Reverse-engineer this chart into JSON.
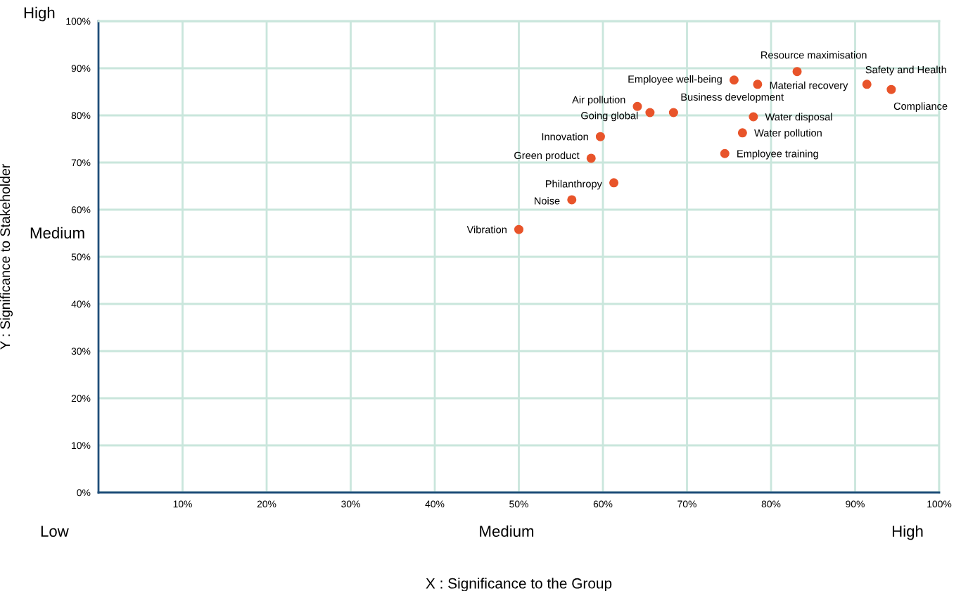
{
  "chart_data": {
    "type": "scatter",
    "xlabel": "X : Significance to the Group",
    "ylabel": "Y : Significance to Stakeholder",
    "x": [
      83.1,
      75.6,
      78.4,
      91.4,
      94.3,
      64.1,
      65.6,
      68.4,
      77.9,
      76.6,
      59.7,
      74.5,
      58.6,
      61.3,
      56.3,
      50.0
    ],
    "values": [
      89.3,
      87.5,
      86.6,
      86.6,
      85.5,
      81.9,
      80.6,
      80.6,
      79.7,
      76.3,
      75.5,
      71.9,
      70.9,
      65.7,
      62.1,
      55.8
    ],
    "value_labels": [
      "Resource maximisation",
      "Employee well-being",
      "Material recovery",
      "Safety and Health",
      "Compliance",
      "Air pollution",
      "Going global",
      "Business development",
      "Water disposal",
      "Water pollution",
      "Innovation",
      "Employee training",
      "Green product",
      "Philanthropy",
      "Noise",
      "Vibration"
    ],
    "color": "#e8542a",
    "marker": "circle",
    "grid": true,
    "xlim": [
      0,
      100
    ],
    "ylim": [
      0,
      100
    ],
    "xticks": [
      {
        "value": 10,
        "label": "10%"
      },
      {
        "value": 20,
        "label": "20%"
      },
      {
        "value": 30,
        "label": "30%"
      },
      {
        "value": 40,
        "label": "40%"
      },
      {
        "value": 50,
        "label": "50%"
      },
      {
        "value": 60,
        "label": "60%"
      },
      {
        "value": 70,
        "label": "70%"
      },
      {
        "value": 80,
        "label": "80%"
      },
      {
        "value": 90,
        "label": "90%"
      },
      {
        "value": 100,
        "label": "100%"
      }
    ],
    "yticks": [
      {
        "value": 0,
        "label": "0%"
      },
      {
        "value": 10,
        "label": "10%"
      },
      {
        "value": 20,
        "label": "20%"
      },
      {
        "value": 30,
        "label": "30%"
      },
      {
        "value": 40,
        "label": "40%"
      },
      {
        "value": 50,
        "label": "50%"
      },
      {
        "value": 60,
        "label": "60%"
      },
      {
        "value": 70,
        "label": "70%"
      },
      {
        "value": 80,
        "label": "80%"
      },
      {
        "value": 90,
        "label": "90%"
      },
      {
        "value": 100,
        "label": "100%"
      }
    ],
    "annotations": [
      "High",
      "Medium",
      "Low",
      "Medium",
      "High"
    ]
  }
}
